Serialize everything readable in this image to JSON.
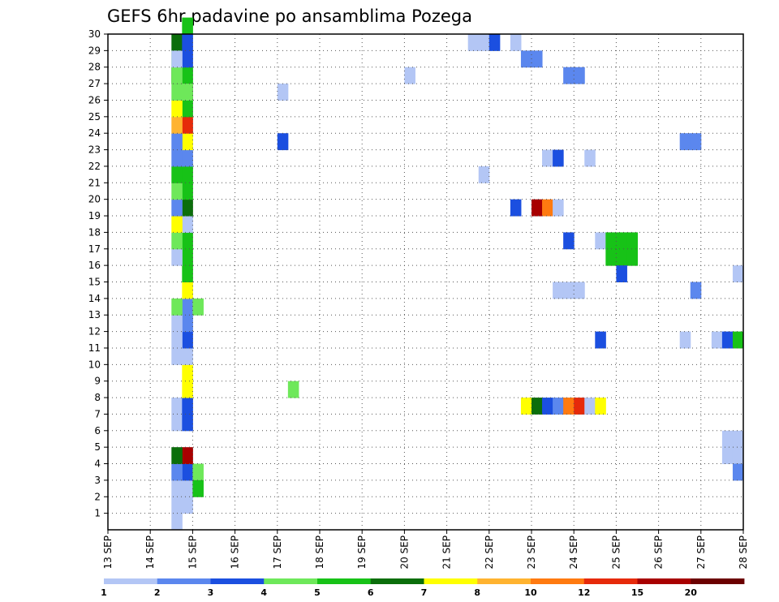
{
  "chart_data": {
    "type": "heatmap",
    "title": "GEFS 6hr padavine po ansamblima Pozega",
    "xlabel": "",
    "ylabel": "",
    "x_tick_labels": [
      "13 SEP",
      "14 SEP",
      "15 SEP",
      "16 SEP",
      "17 SEP",
      "18 SEP",
      "19 SEP",
      "20 SEP",
      "21 SEP",
      "22 SEP",
      "23 SEP",
      "24 SEP",
      "25 SEP",
      "26 SEP",
      "27 SEP",
      "28 SEP"
    ],
    "x_range_days": [
      13,
      28
    ],
    "y_tick_labels": [
      "1",
      "2",
      "3",
      "4",
      "5",
      "6",
      "7",
      "8",
      "9",
      "10",
      "11",
      "12",
      "13",
      "14",
      "15",
      "16",
      "17",
      "18",
      "19",
      "20",
      "21",
      "22",
      "23",
      "24",
      "25",
      "26",
      "27",
      "28",
      "29",
      "30"
    ],
    "y_range": [
      0,
      30
    ],
    "grid": true,
    "colorbar": {
      "placement": "bottom",
      "labels": [
        "1",
        "2",
        "3",
        "4",
        "5",
        "6",
        "7",
        "8",
        "10",
        "12",
        "15",
        "20"
      ],
      "colors": [
        "#b3c6f5",
        "#5b87ee",
        "#1b4fe0",
        "#6ee85a",
        "#17c217",
        "#0b6e0b",
        "#ffff00",
        "#ffb330",
        "#ff7a10",
        "#e62a0a",
        "#a80000",
        "#6b0000"
      ]
    },
    "cells": [
      [
        14.5,
        0,
        0
      ],
      [
        14.5,
        1,
        0
      ],
      [
        14.75,
        1,
        0
      ],
      [
        14.5,
        2,
        0
      ],
      [
        14.75,
        2,
        0
      ],
      [
        14.75,
        3,
        2
      ],
      [
        14.5,
        3,
        1
      ],
      [
        14.75,
        4,
        10
      ],
      [
        14.5,
        4,
        5
      ],
      [
        14.5,
        6,
        0
      ],
      [
        14.75,
        6,
        2
      ],
      [
        14.5,
        7,
        0
      ],
      [
        14.75,
        7,
        2
      ],
      [
        14.75,
        8,
        6
      ],
      [
        14.75,
        9,
        6
      ],
      [
        14.5,
        10,
        0
      ],
      [
        14.75,
        10,
        0
      ],
      [
        14.75,
        11,
        2
      ],
      [
        14.5,
        11,
        0
      ],
      [
        14.75,
        12,
        1
      ],
      [
        14.5,
        12,
        0
      ],
      [
        14.75,
        13,
        1
      ],
      [
        14.5,
        13,
        3
      ],
      [
        14.75,
        14,
        6
      ],
      [
        14.75,
        15,
        4
      ],
      [
        14.75,
        16,
        4
      ],
      [
        14.5,
        16,
        0
      ],
      [
        14.75,
        17,
        4
      ],
      [
        14.5,
        17,
        3
      ],
      [
        14.75,
        18,
        0
      ],
      [
        14.5,
        18,
        6
      ],
      [
        14.75,
        19,
        5
      ],
      [
        14.5,
        19,
        1
      ],
      [
        14.75,
        20,
        4
      ],
      [
        14.5,
        20,
        3
      ],
      [
        14.75,
        21,
        4
      ],
      [
        14.5,
        21,
        4
      ],
      [
        14.75,
        22,
        1
      ],
      [
        14.5,
        22,
        1
      ],
      [
        14.75,
        23,
        6
      ],
      [
        14.5,
        23,
        1
      ],
      [
        14.75,
        24,
        9
      ],
      [
        14.5,
        24,
        7
      ],
      [
        14.75,
        25,
        4
      ],
      [
        14.75,
        26,
        5
      ],
      [
        14.75,
        27,
        4
      ],
      [
        14.5,
        27,
        3
      ],
      [
        14.5,
        28,
        3
      ],
      [
        14.5,
        29,
        5
      ],
      [
        15.0,
        3,
        3
      ],
      [
        15.0,
        13,
        3
      ],
      [
        14.5,
        25,
        6
      ],
      [
        14.75,
        26,
        3
      ],
      [
        14.5,
        26,
        3
      ],
      [
        14.5,
        27,
        5
      ],
      [
        14.5,
        27,
        3
      ],
      [
        15.0,
        2,
        4
      ],
      [
        14.75,
        28,
        2
      ],
      [
        14.5,
        28,
        0
      ],
      [
        14.75,
        29,
        2
      ],
      [
        14.75,
        30,
        4
      ],
      [
        17.0,
        26,
        0
      ],
      [
        17.0,
        23,
        2
      ],
      [
        17.25,
        8,
        3
      ],
      [
        20.0,
        27,
        0
      ],
      [
        21.5,
        29,
        0
      ],
      [
        21.75,
        29,
        0
      ],
      [
        22.0,
        29,
        2
      ],
      [
        22.5,
        29,
        0
      ],
      [
        21.75,
        21,
        0
      ],
      [
        22.5,
        19,
        2
      ],
      [
        22.75,
        28,
        1
      ],
      [
        23.0,
        28,
        1
      ],
      [
        22.75,
        7,
        6
      ],
      [
        23.0,
        7,
        5
      ],
      [
        23.25,
        7,
        2
      ],
      [
        23.5,
        7,
        1
      ],
      [
        23.75,
        7,
        8
      ],
      [
        24.0,
        7,
        9
      ],
      [
        24.25,
        7,
        0
      ],
      [
        24.5,
        7,
        6
      ],
      [
        23.0,
        19,
        10
      ],
      [
        23.25,
        19,
        8
      ],
      [
        23.5,
        19,
        0
      ],
      [
        23.25,
        22,
        0
      ],
      [
        23.5,
        22,
        2
      ],
      [
        23.5,
        14,
        0
      ],
      [
        23.75,
        14,
        0
      ],
      [
        24.0,
        14,
        0
      ],
      [
        23.75,
        17,
        2
      ],
      [
        23.75,
        27,
        1
      ],
      [
        24.0,
        27,
        1
      ],
      [
        24.25,
        22,
        0
      ],
      [
        24.5,
        17,
        0
      ],
      [
        24.75,
        17,
        4
      ],
      [
        25.0,
        17,
        4
      ],
      [
        25.25,
        17,
        4
      ],
      [
        24.75,
        16,
        4
      ],
      [
        25.0,
        16,
        4
      ],
      [
        25.25,
        16,
        4
      ],
      [
        24.5,
        11,
        2
      ],
      [
        25.0,
        15,
        2
      ],
      [
        26.5,
        11,
        0
      ],
      [
        26.5,
        23,
        1
      ],
      [
        26.75,
        23,
        1
      ],
      [
        26.75,
        14,
        1
      ],
      [
        27.25,
        11,
        0
      ],
      [
        27.5,
        11,
        2
      ],
      [
        27.75,
        11,
        4
      ],
      [
        27.5,
        5,
        0
      ],
      [
        27.75,
        5,
        0
      ],
      [
        27.5,
        4,
        0
      ],
      [
        27.75,
        4,
        0
      ],
      [
        27.75,
        3,
        1
      ],
      [
        27.75,
        15,
        0
      ]
    ]
  }
}
